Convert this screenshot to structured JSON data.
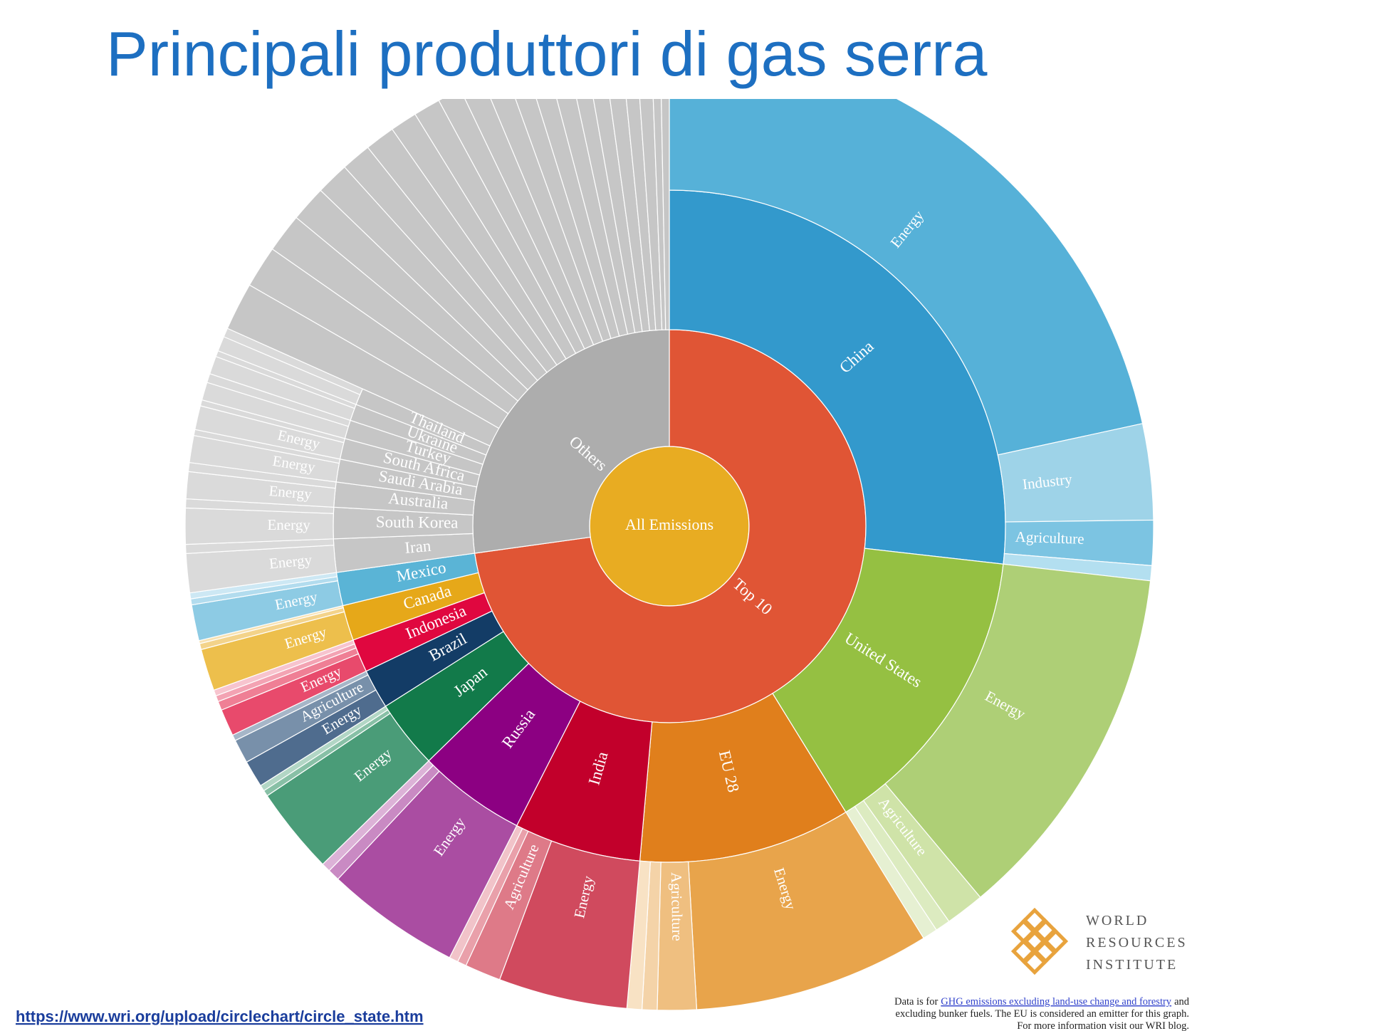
{
  "chart_data": {
    "type": "sunburst",
    "title": "Principali produttori di gas serra",
    "root": {
      "name": "All Emissions",
      "value": 100,
      "color": "#e8ac22",
      "children": [
        {
          "name": "Top 10",
          "value": 72.8,
          "color": "#e05535",
          "children": [
            {
              "name": "China",
              "value": 26.8,
              "color": "#3399cc",
              "children": [
                {
                  "name": "Energy",
                  "value": 21.6,
                  "color": "#56b1d8"
                },
                {
                  "name": "Industry",
                  "value": 3.2,
                  "color": "#9ed3e8"
                },
                {
                  "name": "Agriculture",
                  "value": 1.5,
                  "color": "#7cc4e2"
                },
                {
                  "name": null,
                  "value": 0.5,
                  "color": "#b3dff0"
                }
              ]
            },
            {
              "name": "United States",
              "value": 14.4,
              "color": "#95c042",
              "children": [
                {
                  "name": "Energy",
                  "value": 12.1,
                  "color": "#aecf76"
                },
                {
                  "name": "Agriculture",
                  "value": 1.3,
                  "color": "#cfe3a8"
                },
                {
                  "name": null,
                  "value": 0.5,
                  "color": "#dcebc0"
                },
                {
                  "name": null,
                  "value": 0.5,
                  "color": "#e6f0d2"
                }
              ]
            },
            {
              "name": "EU 28",
              "value": 10.2,
              "color": "#e07f1c",
              "children": [
                {
                  "name": "Energy",
                  "value": 7.9,
                  "color": "#e8a44b"
                },
                {
                  "name": "Agriculture",
                  "value": 1.3,
                  "color": "#efbf80"
                },
                {
                  "name": null,
                  "value": 0.5,
                  "color": "#f4d3a8"
                },
                {
                  "name": null,
                  "value": 0.5,
                  "color": "#f8e2c4"
                }
              ]
            },
            {
              "name": "India",
              "value": 6.1,
              "color": "#c2002b",
              "children": [
                {
                  "name": "Energy",
                  "value": 4.3,
                  "color": "#d04a5e"
                },
                {
                  "name": "Agriculture",
                  "value": 1.2,
                  "color": "#de7a88"
                },
                {
                  "name": null,
                  "value": 0.3,
                  "color": "#e9a0aa"
                },
                {
                  "name": null,
                  "value": 0.3,
                  "color": "#f1c3c9"
                }
              ]
            },
            {
              "name": "Russia",
              "value": 5.2,
              "color": "#8c0082",
              "children": [
                {
                  "name": "Energy",
                  "value": 4.5,
                  "color": "#aa4da2"
                },
                {
                  "name": null,
                  "value": 0.4,
                  "color": "#c98ac3"
                },
                {
                  "name": null,
                  "value": 0.3,
                  "color": "#dcb2d7"
                }
              ]
            },
            {
              "name": "Japan",
              "value": 3.3,
              "color": "#127a4a",
              "children": [
                {
                  "name": "Energy",
                  "value": 2.9,
                  "color": "#4a9c78"
                },
                {
                  "name": null,
                  "value": 0.2,
                  "color": "#88c0a6"
                },
                {
                  "name": null,
                  "value": 0.2,
                  "color": "#b2d6c5"
                }
              ]
            },
            {
              "name": "Brazil",
              "value": 1.9,
              "color": "#133c66",
              "children": [
                {
                  "name": "Energy",
                  "value": 0.9,
                  "color": "#4f6c8e"
                },
                {
                  "name": "Agriculture",
                  "value": 0.8,
                  "color": "#7890aa"
                },
                {
                  "name": null,
                  "value": 0.2,
                  "color": "#a6b6c8"
                }
              ]
            },
            {
              "name": "Indonesia",
              "value": 1.6,
              "color": "#e0073f",
              "children": [
                {
                  "name": "Energy",
                  "value": 0.9,
                  "color": "#e84a6c"
                },
                {
                  "name": null,
                  "value": 0.3,
                  "color": "#ef7f95"
                },
                {
                  "name": null,
                  "value": 0.2,
                  "color": "#f3a3b3"
                },
                {
                  "name": null,
                  "value": 0.2,
                  "color": "#f7c4ce"
                }
              ]
            },
            {
              "name": "Canada",
              "value": 1.7,
              "color": "#e6a819",
              "children": [
                {
                  "name": "Energy",
                  "value": 1.4,
                  "color": "#edbf4c"
                },
                {
                  "name": null,
                  "value": 0.2,
                  "color": "#f3d38a"
                },
                {
                  "name": null,
                  "value": 0.1,
                  "color": "#f7e2b3"
                }
              ]
            },
            {
              "name": "Mexico",
              "value": 1.6,
              "color": "#5ab4d6",
              "children": [
                {
                  "name": "Energy",
                  "value": 1.2,
                  "color": "#8dcbe4"
                },
                {
                  "name": null,
                  "value": 0.2,
                  "color": "#b2dcee"
                },
                {
                  "name": null,
                  "value": 0.2,
                  "color": "#cde8f4"
                }
              ]
            }
          ]
        },
        {
          "name": "Others",
          "value": 27.2,
          "color": "#adadad",
          "child_color": "#c6c6c6",
          "leaf_color": "#dadada",
          "children": [
            {
              "name": "Iran",
              "value": 1.6,
              "children": [
                {
                  "name": "Energy",
                  "value": 1.3
                },
                {
                  "name": null,
                  "value": 0.3
                }
              ]
            },
            {
              "name": "South Korea",
              "value": 1.5,
              "children": [
                {
                  "name": "Energy",
                  "value": 1.2
                },
                {
                  "name": null,
                  "value": 0.3
                }
              ]
            },
            {
              "name": "Australia",
              "value": 1.2,
              "children": [
                {
                  "name": "Energy",
                  "value": 0.9
                },
                {
                  "name": null,
                  "value": 0.3
                }
              ]
            },
            {
              "name": "Saudi Arabia",
              "value": 1.1,
              "children": [
                {
                  "name": "Energy",
                  "value": 0.9
                },
                {
                  "name": null,
                  "value": 0.2
                }
              ]
            },
            {
              "name": "South Africa",
              "value": 1.0,
              "children": [
                {
                  "name": "Energy",
                  "value": 0.8
                },
                {
                  "name": null,
                  "value": 0.2
                }
              ]
            },
            {
              "name": "Turkey",
              "value": 0.9,
              "children": [
                {
                  "name": null,
                  "value": 0.6
                },
                {
                  "name": null,
                  "value": 0.3
                }
              ]
            },
            {
              "name": "Ukraine",
              "value": 0.8,
              "children": [
                {
                  "name": null,
                  "value": 0.6
                },
                {
                  "name": null,
                  "value": 0.2
                }
              ]
            },
            {
              "name": "Thailand",
              "value": 0.8,
              "children": [
                {
                  "name": null,
                  "value": 0.5
                },
                {
                  "name": null,
                  "value": 0.3
                }
              ]
            },
            {
              "name": null,
              "value": 1.6
            },
            {
              "name": null,
              "value": 1.4
            },
            {
              "name": null,
              "value": 1.3
            },
            {
              "name": null,
              "value": 1.2
            },
            {
              "name": null,
              "value": 1.1
            },
            {
              "name": null,
              "value": 1.0
            },
            {
              "name": null,
              "value": 1.0
            },
            {
              "name": null,
              "value": 0.9
            },
            {
              "name": null,
              "value": 0.9
            },
            {
              "name": null,
              "value": 0.8
            },
            {
              "name": null,
              "value": 0.8
            },
            {
              "name": null,
              "value": 0.8
            },
            {
              "name": null,
              "value": 0.7
            },
            {
              "name": null,
              "value": 0.7
            },
            {
              "name": null,
              "value": 0.7
            },
            {
              "name": null,
              "value": 0.6
            },
            {
              "name": null,
              "value": 0.6
            },
            {
              "name": null,
              "value": 0.6
            },
            {
              "name": null,
              "value": 0.5
            },
            {
              "name": null,
              "value": 0.5
            },
            {
              "name": null,
              "value": 0.3
            },
            {
              "name": null,
              "value": 0.3
            }
          ]
        }
      ]
    }
  },
  "source_url": "https://www.wri.org/upload/circlechart/circle_state.htm",
  "logo": {
    "lines": [
      "WORLD",
      "RESOURCES",
      "INSTITUTE"
    ]
  },
  "note": {
    "line1_before": "Data is for",
    "line1_link": "GHG emissions excluding land-use change and forestry",
    "line1_after": "and",
    "line2": "excluding bunker fuels. The EU is considered an emitter for this graph.",
    "line3": "For more information visit our WRI blog."
  }
}
